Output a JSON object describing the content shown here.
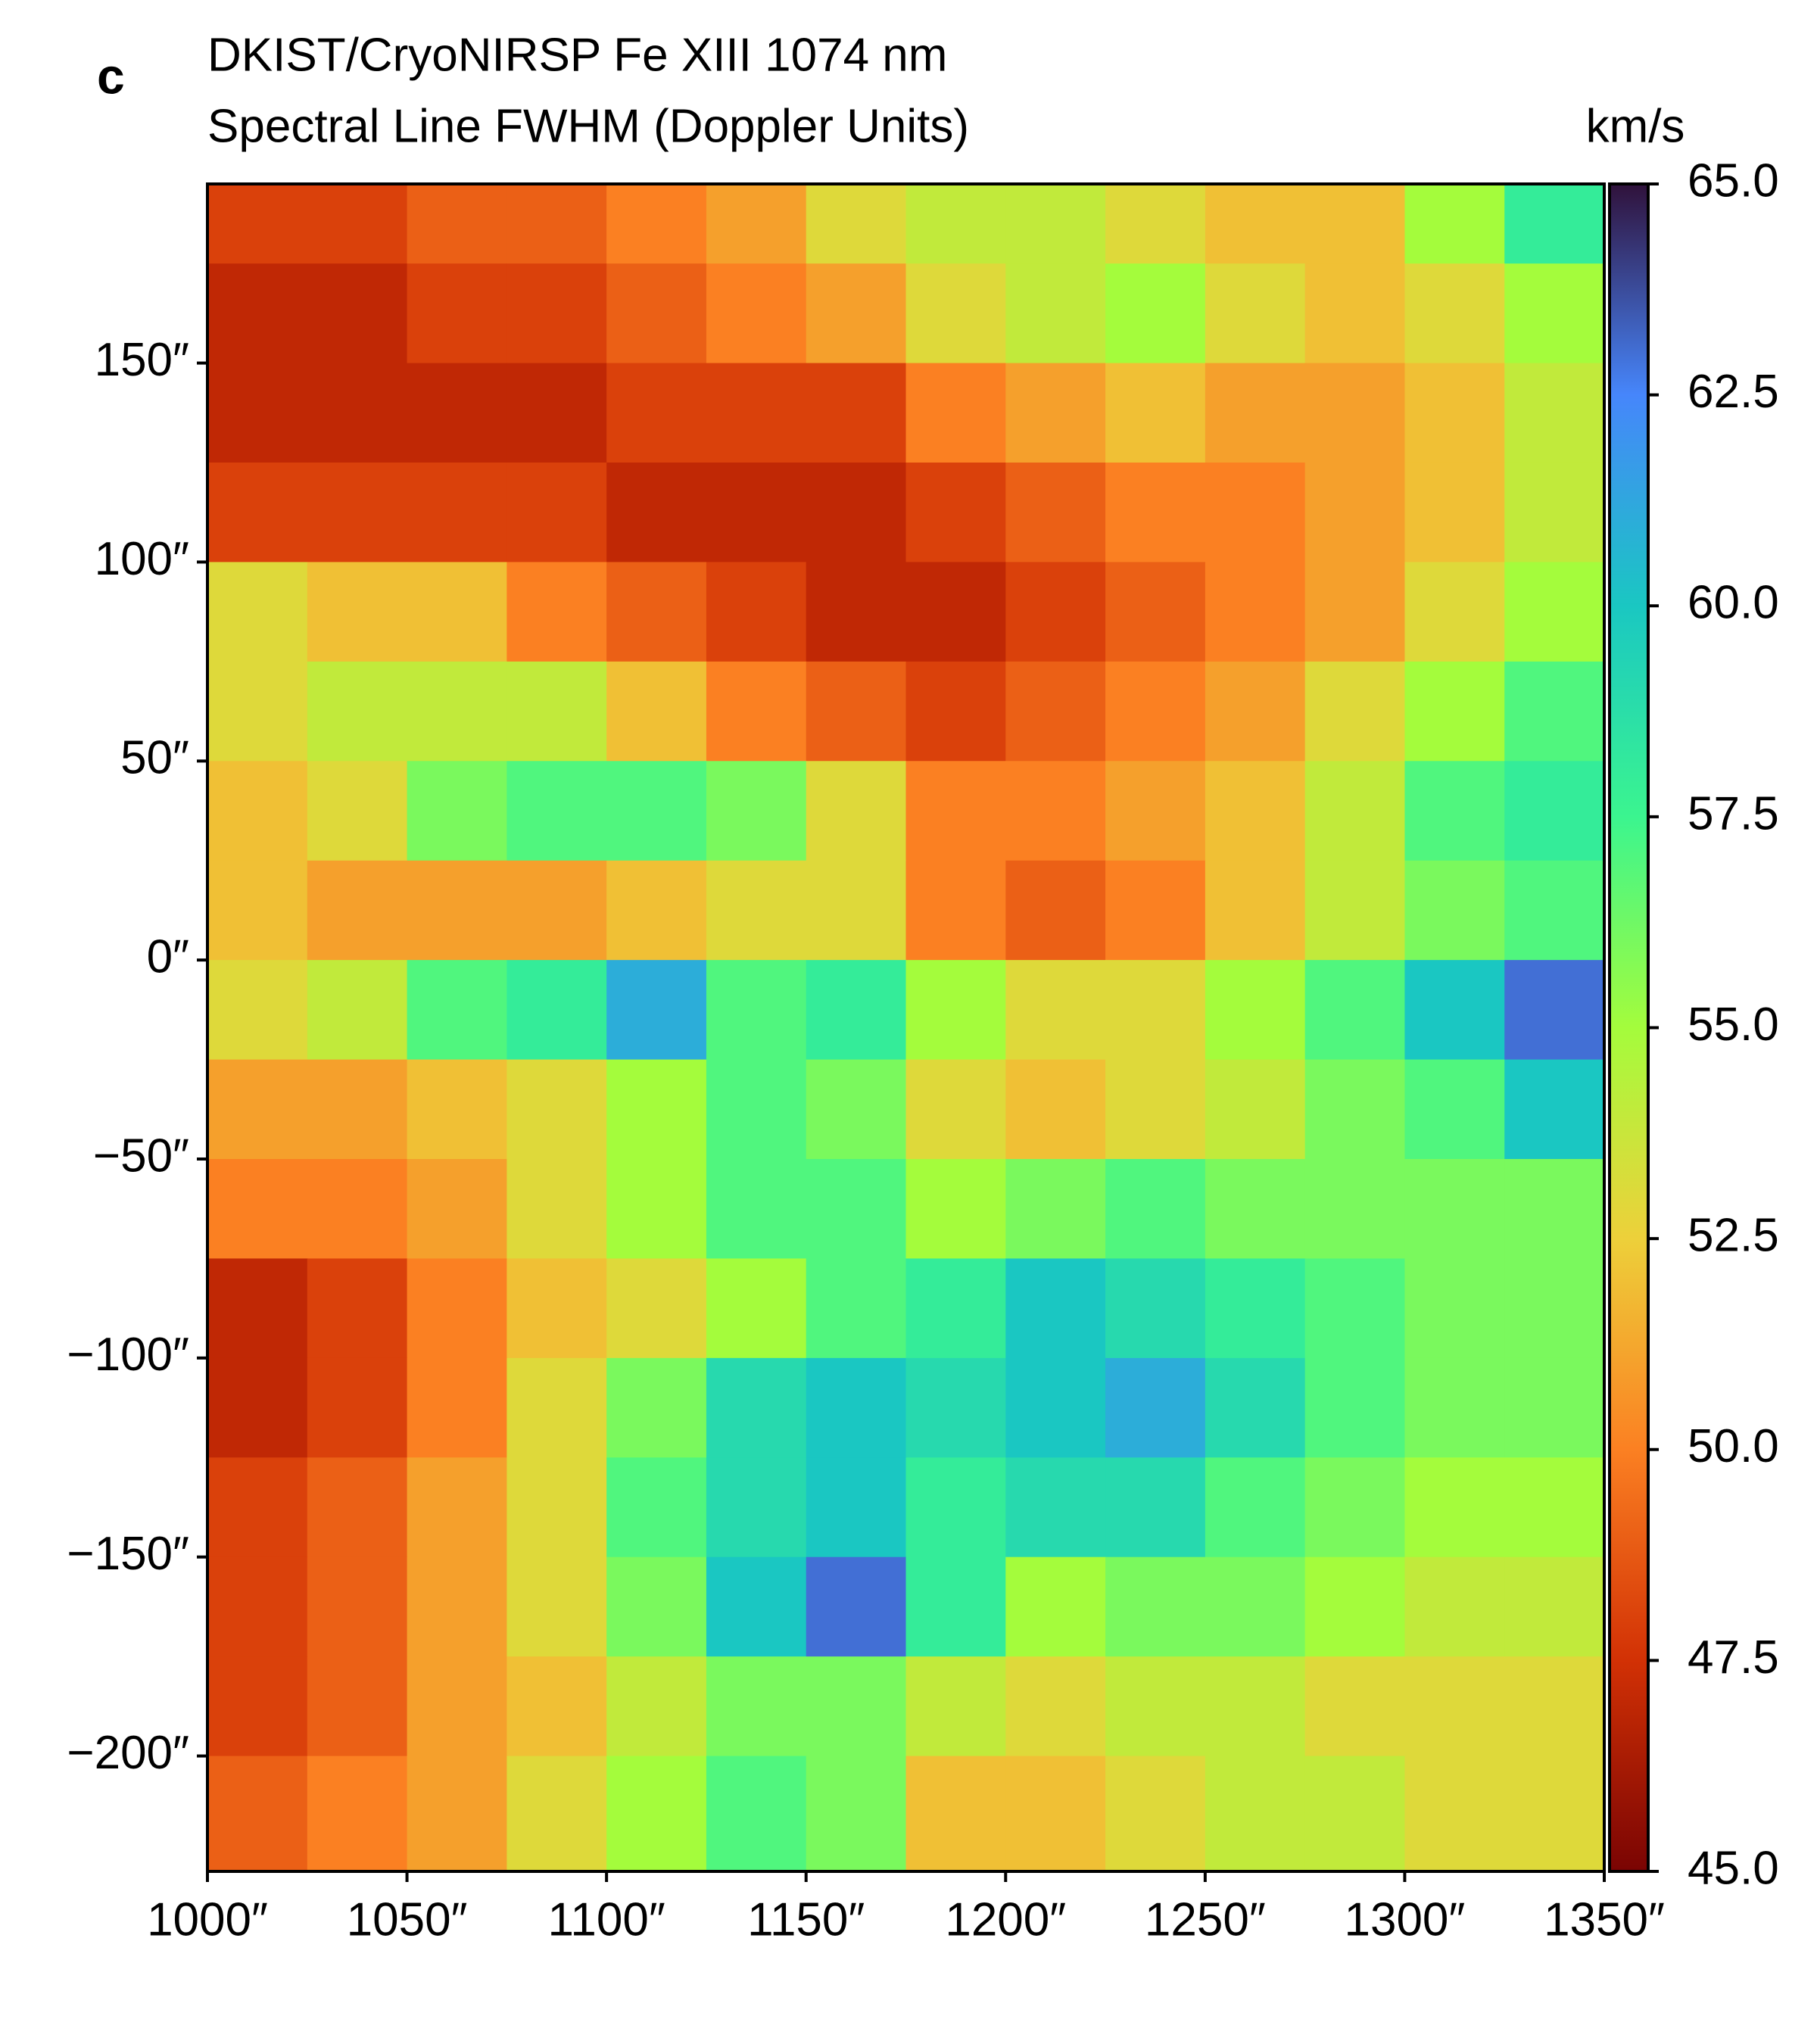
{
  "chart_data": {
    "type": "heatmap",
    "panel_label": "c",
    "title": "DKIST/CryoNIRSP Fe XIII 1074 nm",
    "subtitle": "Spectral Line FWHM (Doppler Units)",
    "colorbar_label": "km/s",
    "x_edges": [
      1000,
      1025,
      1050,
      1075,
      1100,
      1125,
      1150,
      1175,
      1200,
      1225,
      1250,
      1275,
      1300,
      1325,
      1350
    ],
    "y_edges": [
      195,
      175,
      150,
      125,
      100,
      75,
      50,
      25,
      0,
      -25,
      -50,
      -75,
      -100,
      -125,
      -150,
      -175,
      -200,
      -229
    ],
    "z": [
      [
        48,
        48,
        49,
        49,
        50,
        51,
        53,
        54,
        54,
        53,
        52,
        52,
        55,
        58
      ],
      [
        47,
        47,
        48,
        48,
        49,
        50,
        51,
        53,
        54,
        55,
        53,
        52,
        53,
        55
      ],
      [
        47,
        47,
        47,
        47,
        48,
        48,
        48,
        50,
        51,
        52,
        51,
        51,
        52,
        54
      ],
      [
        48,
        48,
        48,
        48,
        47,
        47,
        47,
        48,
        49,
        50,
        50,
        51,
        52,
        54
      ],
      [
        53,
        52,
        52,
        50,
        49,
        48,
        47,
        47,
        48,
        49,
        50,
        51,
        53,
        55
      ],
      [
        53,
        54,
        54,
        54,
        52,
        50,
        49,
        48,
        49,
        50,
        51,
        53,
        55,
        57
      ],
      [
        52,
        53,
        56,
        57,
        57,
        56,
        53,
        50,
        50,
        51,
        52,
        54,
        57,
        58
      ],
      [
        52,
        51,
        51,
        51,
        52,
        53,
        53,
        50,
        49,
        50,
        52,
        54,
        56,
        57
      ],
      [
        53,
        54,
        57,
        58,
        61,
        57,
        58,
        55,
        53,
        53,
        55,
        57,
        60,
        63
      ],
      [
        51,
        51,
        52,
        53,
        55,
        57,
        56,
        53,
        52,
        53,
        54,
        56,
        57,
        60
      ],
      [
        50,
        50,
        51,
        53,
        55,
        57,
        57,
        55,
        56,
        57,
        56,
        56,
        56,
        56
      ],
      [
        47,
        48,
        50,
        52,
        53,
        55,
        57,
        58,
        60,
        59,
        58,
        57,
        56,
        56
      ],
      [
        47,
        48,
        50,
        53,
        56,
        59,
        60,
        59,
        60,
        61,
        59,
        57,
        56,
        56
      ],
      [
        48,
        49,
        51,
        53,
        57,
        59,
        60,
        58,
        59,
        59,
        57,
        56,
        55,
        55
      ],
      [
        48,
        49,
        51,
        53,
        56,
        60,
        63,
        58,
        55,
        56,
        56,
        55,
        54,
        54
      ],
      [
        48,
        49,
        51,
        52,
        54,
        56,
        56,
        54,
        53,
        54,
        54,
        53,
        53,
        53
      ],
      [
        49,
        50,
        51,
        53,
        55,
        57,
        56,
        52,
        52,
        53,
        54,
        54,
        53,
        53
      ]
    ],
    "xlim": [
      1000,
      1350
    ],
    "ylim": [
      -229,
      195
    ],
    "clim": [
      45,
      65
    ],
    "xticks": [
      {
        "value": 1000,
        "label": "1000″"
      },
      {
        "value": 1050,
        "label": "1050″"
      },
      {
        "value": 1100,
        "label": "1100″"
      },
      {
        "value": 1150,
        "label": "1150″"
      },
      {
        "value": 1200,
        "label": "1200″"
      },
      {
        "value": 1250,
        "label": "1250″"
      },
      {
        "value": 1300,
        "label": "1300″"
      },
      {
        "value": 1350,
        "label": "1350″"
      }
    ],
    "yticks": [
      {
        "value": -200,
        "label": "−200″"
      },
      {
        "value": -150,
        "label": "−150″"
      },
      {
        "value": -100,
        "label": "−100″"
      },
      {
        "value": -50,
        "label": "−50″"
      },
      {
        "value": 0,
        "label": "0″"
      },
      {
        "value": 50,
        "label": "50″"
      },
      {
        "value": 100,
        "label": "100″"
      },
      {
        "value": 150,
        "label": "150″"
      }
    ],
    "cticks": [
      {
        "value": 45,
        "label": "45.0"
      },
      {
        "value": 47.5,
        "label": "47.5"
      },
      {
        "value": 50,
        "label": "50.0"
      },
      {
        "value": 52.5,
        "label": "52.5"
      },
      {
        "value": 55,
        "label": "55.0"
      },
      {
        "value": 57.5,
        "label": "57.5"
      },
      {
        "value": 60,
        "label": "60.0"
      },
      {
        "value": 62.5,
        "label": "62.5"
      },
      {
        "value": 65,
        "label": "65.0"
      }
    ],
    "colormap": [
      "#7a0403",
      "#d23105",
      "#fb8022",
      "#edd03a",
      "#a4fc3c",
      "#3bf58f",
      "#1ac7c2",
      "#4686fb",
      "#30123b"
    ]
  }
}
